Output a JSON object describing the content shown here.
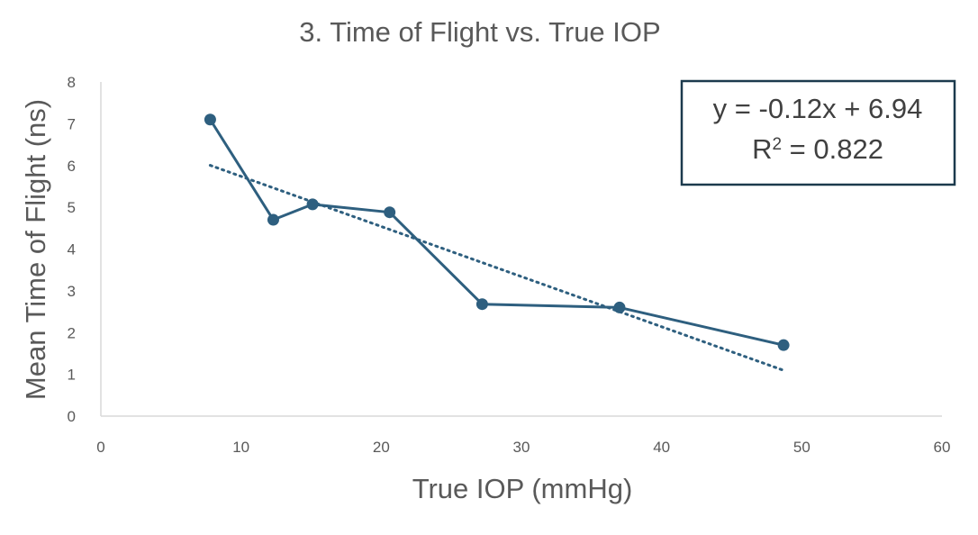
{
  "chart_data": {
    "type": "scatter",
    "title": "3. Time of Flight vs. True IOP",
    "xlabel": "True IOP (mmHg)",
    "ylabel": "Mean Time of Flight (ns)",
    "xlim": [
      0,
      60
    ],
    "ylim": [
      0,
      8
    ],
    "x_ticks": [
      "0",
      "10",
      "20",
      "30",
      "40",
      "50",
      "60"
    ],
    "y_ticks": [
      "0",
      "1",
      "2",
      "3",
      "4",
      "5",
      "6",
      "7",
      "8"
    ],
    "grid": false,
    "series": [
      {
        "x": [
          7.8,
          12.3,
          15.1,
          20.6,
          27.2,
          37.0,
          48.7
        ],
        "y": [
          7.1,
          4.7,
          5.07,
          4.88,
          2.68,
          2.6,
          1.7
        ],
        "color": "#2e5f7f",
        "style": "line-with-markers"
      }
    ],
    "trendline": {
      "type": "linear",
      "slope": -0.12,
      "intercept": 6.94,
      "x_range": [
        7.8,
        48.7
      ],
      "style": "dotted",
      "color": "#2e5f7f"
    },
    "equation_box": {
      "equation": "y = -0.12x + 6.94",
      "r_prefix": "R",
      "r_exp": "2",
      "r_value": " = 0.822"
    }
  }
}
